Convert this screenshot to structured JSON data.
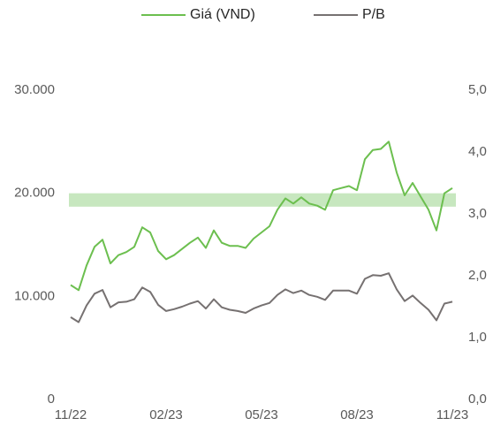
{
  "chart_data": {
    "type": "line",
    "categories": [
      "11/22",
      null,
      null,
      null,
      null,
      null,
      null,
      null,
      null,
      null,
      null,
      null,
      "02/23",
      null,
      null,
      null,
      null,
      null,
      null,
      null,
      null,
      null,
      null,
      null,
      "05/23",
      null,
      null,
      null,
      null,
      null,
      null,
      null,
      null,
      null,
      null,
      null,
      "08/23",
      null,
      null,
      null,
      null,
      null,
      null,
      null,
      null,
      null,
      null,
      null,
      "11/23"
    ],
    "series": [
      {
        "name": "Giá (VND)",
        "color": "#6cbf4f",
        "values": [
          11100,
          10600,
          13000,
          14800,
          15500,
          13200,
          14000,
          14300,
          14800,
          16700,
          16200,
          14400,
          13600,
          14000,
          14600,
          15200,
          15700,
          14700,
          16400,
          15200,
          14900,
          14900,
          14700,
          15600,
          16200,
          16800,
          18400,
          19500,
          19000,
          19600,
          19000,
          18800,
          18400,
          20300,
          20500,
          20700,
          20300,
          23300,
          24200,
          24300,
          25000,
          22000,
          19800,
          21000,
          19700,
          18400,
          16400,
          20000,
          20500
        ]
      },
      {
        "name": "P/B",
        "color": "#767171",
        "axis": "y2",
        "values": [
          1.33,
          1.25,
          1.52,
          1.71,
          1.77,
          1.49,
          1.57,
          1.58,
          1.62,
          1.81,
          1.74,
          1.53,
          1.43,
          1.46,
          1.5,
          1.55,
          1.59,
          1.47,
          1.62,
          1.49,
          1.45,
          1.43,
          1.4,
          1.47,
          1.52,
          1.56,
          1.69,
          1.78,
          1.72,
          1.76,
          1.69,
          1.66,
          1.61,
          1.76,
          1.76,
          1.76,
          1.71,
          1.95,
          2.01,
          2.0,
          2.04,
          1.78,
          1.59,
          1.68,
          1.56,
          1.45,
          1.28,
          1.55,
          1.58
        ]
      }
    ],
    "ylim": [
      0,
      30000
    ],
    "yticks": [
      0,
      {
        "value": 10000,
        "label": "10.000"
      },
      {
        "value": 20000,
        "label": "20.000"
      },
      {
        "value": 30000,
        "label": "30.000"
      }
    ],
    "y2lim": [
      0,
      5
    ],
    "y2ticks": [
      {
        "value": 0,
        "label": "0,0"
      },
      {
        "value": 1,
        "label": "1,0"
      },
      {
        "value": 2,
        "label": "2,0"
      },
      {
        "value": 3,
        "label": "3,0"
      },
      {
        "value": 4,
        "label": "4,0"
      },
      {
        "value": 5,
        "label": "5,0"
      }
    ],
    "highlight_band": [
      18700,
      20000
    ],
    "highlight_color": "#c7e7bf",
    "legend": "top",
    "grid": false
  }
}
